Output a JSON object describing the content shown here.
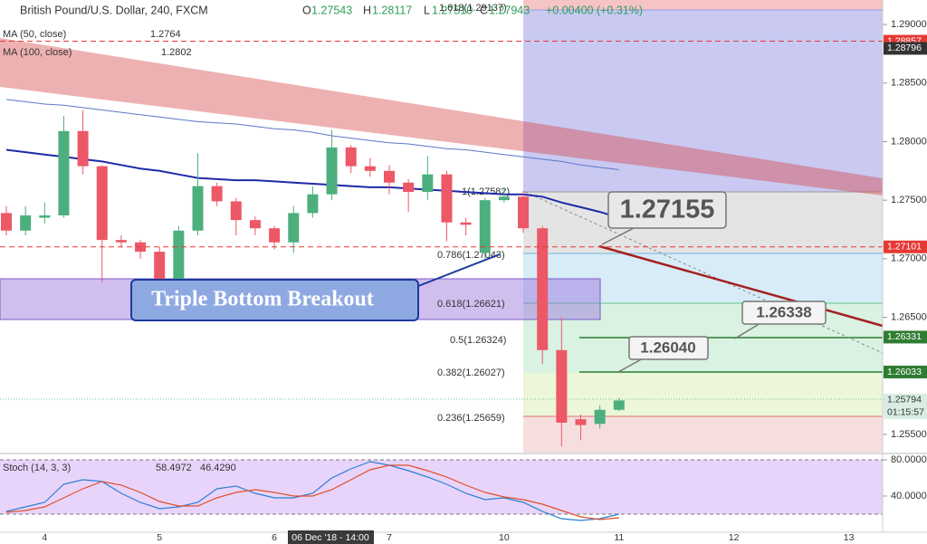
{
  "chart_data": [
    {
      "type": "candlestick",
      "title": "British Pound/U.S. Dollar, 240, FXCM",
      "header": [
        {
          "key": "O",
          "value": "1.27543"
        },
        {
          "key": "H",
          "value": "1.28117"
        },
        {
          "key": "L",
          "value": "1.27510"
        },
        {
          "key": "C",
          "value": "1.27943"
        }
      ],
      "change": "+0.00400 (+0.31%)",
      "categories": [
        null,
        null,
        "4",
        null,
        null,
        null,
        null,
        null,
        "5",
        null,
        null,
        null,
        null,
        null,
        "6",
        null,
        null,
        null,
        null,
        null,
        "7",
        null,
        null,
        null,
        null,
        null,
        "10",
        null,
        null,
        null,
        null,
        null,
        "11",
        null,
        null,
        null,
        null,
        null,
        "12",
        null,
        null,
        null,
        null,
        null,
        "13",
        null
      ],
      "open": [
        1.2739,
        1.2724,
        1.2735,
        1.2737,
        1.2809,
        1.2779,
        1.2716,
        1.2714,
        1.2706,
        1.2681,
        1.2724,
        1.2762,
        1.2749,
        1.2733,
        1.2726,
        1.2714,
        1.2739,
        1.2755,
        1.2795,
        1.2779,
        1.2775,
        1.2765,
        1.2757,
        1.2772,
        1.2731,
        1.2705,
        1.275,
        1.2753,
        1.2726,
        1.2622,
        1.2563,
        1.2559,
        1.2571,
        null,
        null,
        null,
        null,
        null,
        null,
        null,
        null,
        null,
        null,
        null,
        null,
        null
      ],
      "high": [
        1.2745,
        1.2745,
        1.2748,
        1.2822,
        1.2827,
        1.278,
        1.272,
        1.2716,
        1.271,
        1.2728,
        1.279,
        1.2765,
        1.2752,
        1.2736,
        1.2728,
        1.2745,
        1.2762,
        1.281,
        1.2797,
        1.2786,
        1.278,
        1.2768,
        1.2788,
        1.2775,
        1.2735,
        1.2752,
        1.276,
        1.2758,
        1.2728,
        1.265,
        1.2567,
        1.2575,
        1.2581,
        null,
        null,
        null,
        null,
        null,
        null,
        null,
        null,
        null,
        null,
        null,
        null,
        null
      ],
      "low": [
        1.272,
        1.272,
        1.273,
        1.2735,
        1.2772,
        1.268,
        1.271,
        1.27,
        1.2672,
        1.2676,
        1.272,
        1.2745,
        1.272,
        1.272,
        1.2708,
        1.2705,
        1.2735,
        1.275,
        1.2773,
        1.277,
        1.2755,
        1.274,
        1.275,
        1.2715,
        1.272,
        1.27,
        1.2748,
        1.2722,
        1.261,
        1.254,
        1.2545,
        1.2555,
        1.257,
        null,
        null,
        null,
        null,
        null,
        null,
        null,
        null,
        null,
        null,
        null,
        null,
        null
      ],
      "close": [
        1.2724,
        1.2737,
        1.2737,
        1.2809,
        1.2779,
        1.2716,
        1.2714,
        1.2706,
        1.2681,
        1.2724,
        1.2762,
        1.2749,
        1.2733,
        1.2726,
        1.2714,
        1.2739,
        1.2755,
        1.2795,
        1.2779,
        1.2775,
        1.2765,
        1.2757,
        1.2772,
        1.2731,
        1.2729,
        1.275,
        1.2753,
        1.2726,
        1.2622,
        1.256,
        1.2558,
        1.2571,
        1.2579,
        null,
        null,
        null,
        null,
        null,
        null,
        null,
        null,
        null,
        null,
        null,
        null,
        null
      ],
      "up_color": "#4caf7d",
      "down_color": "#ec5866",
      "series": [
        {
          "name": "MA (50, close)",
          "color": "#1e2aa8",
          "legend_value": "1.2764",
          "values": [
            1.2793,
            1.2791,
            1.2789,
            1.2787,
            1.2785,
            1.2783,
            1.278,
            1.2777,
            1.2775,
            1.2772,
            1.2769,
            1.2768,
            1.2767,
            1.2767,
            1.2766,
            1.2765,
            1.2764,
            1.2763,
            1.2762,
            1.2761,
            1.2761,
            1.276,
            1.2759,
            1.2758,
            1.2757,
            1.2756,
            1.2755,
            1.2755,
            1.2753,
            1.2748,
            1.2744,
            1.274,
            1.2735,
            null,
            null,
            null,
            null,
            null,
            null,
            null,
            null,
            null,
            null,
            null,
            null,
            null
          ]
        },
        {
          "name": "MA (100, close)",
          "color": "#5b78c8",
          "legend_value": "1.2802",
          "values": [
            1.2836,
            1.2834,
            1.2832,
            1.2831,
            1.2829,
            1.2827,
            1.2825,
            1.2823,
            1.2821,
            1.2819,
            1.2817,
            1.2816,
            1.2815,
            1.2813,
            1.2811,
            1.281,
            1.2808,
            1.2805,
            1.2803,
            1.2801,
            1.2799,
            1.2798,
            1.2796,
            1.2794,
            1.2793,
            1.2791,
            1.2789,
            1.2787,
            1.2785,
            1.2783,
            1.278,
            1.2778,
            1.2776,
            null,
            null,
            null,
            null,
            null,
            null,
            null,
            null,
            null,
            null,
            null,
            null,
            null
          ]
        }
      ],
      "ylim": [
        1.25345,
        1.29209
      ],
      "yticks": [
        {
          "value": 1.29,
          "label": "1.29000"
        },
        {
          "value": 1.285,
          "label": "1.28500"
        },
        {
          "value": 1.28,
          "label": "1.28000"
        },
        {
          "value": 1.275,
          "label": "1.27500"
        },
        {
          "value": 1.27,
          "label": "1.27000"
        },
        {
          "value": 1.265,
          "label": "1.26500"
        },
        {
          "value": 1.26,
          "label": "1.26000"
        },
        {
          "value": 1.255,
          "label": "1.25500"
        }
      ],
      "price_tags": [
        {
          "value": 1.28857,
          "label": "1.28857",
          "color": "#e53935"
        },
        {
          "value": 1.28796,
          "label": "1.28796",
          "color": "#333333"
        },
        {
          "value": 1.27101,
          "label": "1.27101",
          "color": "#e53935"
        },
        {
          "value": 1.26331,
          "label": "1.26331",
          "color": "#2e7d32"
        },
        {
          "value": 1.26033,
          "label": "1.26033",
          "color": "#2e7d32"
        },
        {
          "value": 1.25794,
          "label": "1.25794",
          "color": "#d9ede3"
        }
      ],
      "countdown": "01:15:57",
      "fib_labels": [
        "1.618(1.29137)",
        "1(1.27582)",
        "0.786(1.27043)",
        "0.618(1.26621)",
        "0.5(1.26324)",
        "0.382(1.26027)",
        "0.236(1.25659)"
      ],
      "annotations": [
        "Triple Bottom Breakout",
        "1.27155",
        "1.26338",
        "1.26040"
      ],
      "crosshair_label": "06 Dec '18 - 14:00"
    },
    {
      "type": "line",
      "title": "Stoch (14, 3, 3)",
      "series": [
        {
          "color": "#2a7fd4",
          "legend_value": "58.4972",
          "values": [
            23,
            28,
            33,
            53,
            58,
            56,
            43,
            33,
            26,
            28,
            33,
            48,
            51,
            43,
            38,
            38,
            43,
            60,
            70,
            78,
            74,
            68,
            61,
            53,
            43,
            36,
            38,
            33,
            23,
            15,
            13,
            15,
            20
          ]
        },
        {
          "color": "#e0502a",
          "legend_value": "46.4290",
          "values": [
            22,
            24,
            28,
            38,
            48,
            56,
            52,
            44,
            34,
            29,
            29,
            38,
            44,
            47,
            44,
            40,
            40,
            47,
            58,
            69,
            74,
            74,
            68,
            61,
            52,
            44,
            39,
            36,
            31,
            24,
            17,
            14,
            16
          ]
        }
      ],
      "ylim": [
        0,
        85
      ],
      "yticks": [
        {
          "value": 80,
          "label": "80.0000"
        },
        {
          "value": 40,
          "label": "40.0000"
        }
      ]
    }
  ]
}
